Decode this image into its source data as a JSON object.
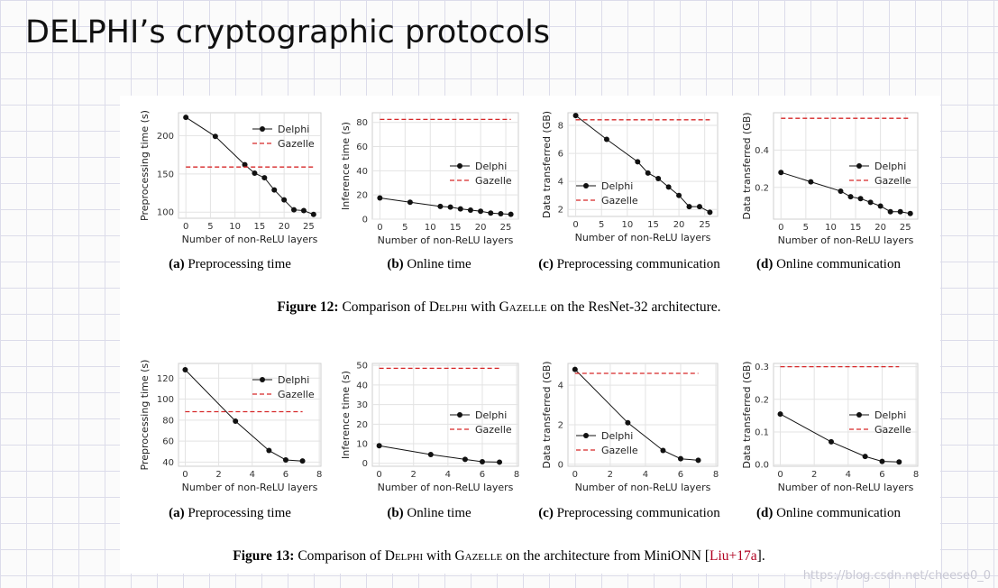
{
  "slide": {
    "title": "DELPHI’s cryptographic protocols",
    "watermark": "https://blog.csdn.net/cheese0_0"
  },
  "figures": [
    {
      "label": "Figure 12:",
      "caption_a": "Comparison of ",
      "sc1": "Delphi",
      "caption_b": " with ",
      "sc2": "Gazelle",
      "caption_c": " on the ResNet-32 architecture.",
      "cite": "",
      "caption_end": ""
    },
    {
      "label": "Figure 13:",
      "caption_a": "Comparison of ",
      "sc1": "Delphi",
      "caption_b": " with ",
      "sc2": "Gazelle",
      "caption_c": " on the architecture from MiniONN [",
      "cite": "Liu+17a",
      "caption_end": "]."
    }
  ],
  "subcaptions": [
    {
      "letter": "(a)",
      "text": " Preprocessing time"
    },
    {
      "letter": "(b)",
      "text": " Online time"
    },
    {
      "letter": "(c)",
      "text": " Preprocessing communication"
    },
    {
      "letter": "(d)",
      "text": " Online communication"
    },
    {
      "letter": "(a)",
      "text": " Preprocessing time"
    },
    {
      "letter": "(b)",
      "text": " Online time"
    },
    {
      "letter": "(c)",
      "text": " Preprocessing communication"
    },
    {
      "letter": "(d)",
      "text": " Online communication"
    }
  ],
  "colors": {
    "delphi": "#111111",
    "gazelle": "#d62728",
    "grid": "#e3e3e3",
    "axis": "#333333"
  },
  "chart_data": [
    {
      "type": "line",
      "title": "",
      "xlabel": "Number of non-ReLU layers",
      "ylabel": "Preprocessing time (s)",
      "xlim": [
        -1.5,
        27.5
      ],
      "ylim": [
        92,
        230
      ],
      "xticks": [
        0,
        5,
        10,
        15,
        20,
        25
      ],
      "yticks": [
        100,
        150,
        200
      ],
      "legend": "top-right",
      "series": [
        {
          "name": "Delphi",
          "style": "line-marker",
          "x": [
            0,
            6,
            12,
            14,
            16,
            18,
            20,
            22,
            24,
            26
          ],
          "y": [
            224,
            199,
            162,
            151,
            145,
            129,
            116,
            103,
            102,
            97
          ]
        },
        {
          "name": "Gazelle",
          "style": "dashed",
          "x": [
            0,
            26
          ],
          "y": [
            159,
            159
          ]
        }
      ]
    },
    {
      "type": "line",
      "title": "",
      "xlabel": "Number of non-ReLU layers",
      "ylabel": "Inference time (s)",
      "xlim": [
        -1.5,
        27.5
      ],
      "ylim": [
        0,
        88
      ],
      "xticks": [
        0,
        5,
        10,
        15,
        20,
        25
      ],
      "yticks": [
        0,
        20,
        40,
        60,
        80
      ],
      "legend": "center-right",
      "series": [
        {
          "name": "Delphi",
          "style": "line-marker",
          "x": [
            0,
            6,
            12,
            14,
            16,
            18,
            20,
            22,
            24,
            26
          ],
          "y": [
            17.5,
            14,
            10.5,
            10,
            8.5,
            7.5,
            6.5,
            5,
            4.5,
            4
          ]
        },
        {
          "name": "Gazelle",
          "style": "dashed",
          "x": [
            0,
            26
          ],
          "y": [
            82.5,
            82.5
          ]
        }
      ]
    },
    {
      "type": "line",
      "title": "",
      "xlabel": "Number of non-ReLU layers",
      "ylabel": "Data transferred (GB)",
      "xlim": [
        -1.5,
        27.5
      ],
      "ylim": [
        1.5,
        8.9
      ],
      "xticks": [
        0,
        5,
        10,
        15,
        20,
        25
      ],
      "yticks": [
        2,
        4,
        6,
        8
      ],
      "legend": "bottom-left",
      "series": [
        {
          "name": "Delphi",
          "style": "line-marker",
          "x": [
            0,
            6,
            12,
            14,
            16,
            18,
            20,
            22,
            24,
            26
          ],
          "y": [
            8.7,
            7.0,
            5.4,
            4.6,
            4.2,
            3.6,
            3.0,
            2.2,
            2.2,
            1.8
          ]
        },
        {
          "name": "Gazelle",
          "style": "dashed",
          "x": [
            0,
            26
          ],
          "y": [
            8.4,
            8.4
          ]
        }
      ]
    },
    {
      "type": "line",
      "title": "",
      "xlabel": "Number of non-ReLU layers",
      "ylabel": "Data transferred (GB)",
      "xlim": [
        -1.5,
        27.5
      ],
      "ylim": [
        0.03,
        0.6
      ],
      "xticks": [
        0,
        5,
        10,
        15,
        20,
        25
      ],
      "yticks": [
        0.2,
        0.4
      ],
      "legend": "center-right",
      "series": [
        {
          "name": "Delphi",
          "style": "line-marker",
          "x": [
            0,
            6,
            12,
            14,
            16,
            18,
            20,
            22,
            24,
            26
          ],
          "y": [
            0.28,
            0.23,
            0.18,
            0.15,
            0.14,
            0.12,
            0.1,
            0.07,
            0.07,
            0.06
          ]
        },
        {
          "name": "Gazelle",
          "style": "dashed",
          "x": [
            0,
            26
          ],
          "y": [
            0.57,
            0.57
          ]
        }
      ]
    },
    {
      "type": "line",
      "title": "",
      "xlabel": "Number of non-ReLU layers",
      "ylabel": "Preprocessing time (s)",
      "xlim": [
        -0.4,
        8.1
      ],
      "ylim": [
        36,
        134
      ],
      "xticks": [
        0,
        2,
        4,
        6,
        8
      ],
      "yticks": [
        40,
        60,
        80,
        100,
        120
      ],
      "legend": "top-right",
      "series": [
        {
          "name": "Delphi",
          "style": "line-marker",
          "x": [
            0,
            3,
            5,
            6,
            7
          ],
          "y": [
            128,
            79,
            51,
            42,
            41
          ]
        },
        {
          "name": "Gazelle",
          "style": "dashed",
          "x": [
            0,
            7
          ],
          "y": [
            88,
            88
          ]
        }
      ]
    },
    {
      "type": "line",
      "title": "",
      "xlabel": "Number of non-ReLU layers",
      "ylabel": "Inference time (s)",
      "xlim": [
        -0.4,
        8.1
      ],
      "ylim": [
        -1.5,
        51
      ],
      "xticks": [
        0,
        2,
        4,
        6,
        8
      ],
      "yticks": [
        0,
        10,
        20,
        30,
        40,
        50
      ],
      "legend": "center-right",
      "series": [
        {
          "name": "Delphi",
          "style": "line-marker",
          "x": [
            0,
            3,
            5,
            6,
            7
          ],
          "y": [
            9,
            4.5,
            2,
            0.8,
            0.6
          ]
        },
        {
          "name": "Gazelle",
          "style": "dashed",
          "x": [
            0,
            7
          ],
          "y": [
            48.5,
            48.5
          ]
        }
      ]
    },
    {
      "type": "line",
      "title": "",
      "xlabel": "Number of non-ReLU layers",
      "ylabel": "Data transferred (GB)",
      "xlim": [
        -0.4,
        8.1
      ],
      "ylim": [
        -0.1,
        5.1
      ],
      "xticks": [
        0,
        2,
        4,
        6,
        8
      ],
      "yticks": [
        0,
        2,
        4
      ],
      "legend": "bottom-left",
      "series": [
        {
          "name": "Delphi",
          "style": "line-marker",
          "x": [
            0,
            3,
            5,
            6,
            7
          ],
          "y": [
            4.8,
            2.1,
            0.7,
            0.28,
            0.2
          ]
        },
        {
          "name": "Gazelle",
          "style": "dashed",
          "x": [
            0,
            7
          ],
          "y": [
            4.6,
            4.6
          ]
        }
      ]
    },
    {
      "type": "line",
      "title": "",
      "xlabel": "Number of non-ReLU layers",
      "ylabel": "Data transferred (GB)",
      "xlim": [
        -0.4,
        8.1
      ],
      "ylim": [
        -0.005,
        0.31
      ],
      "xticks": [
        0,
        2,
        4,
        6,
        8
      ],
      "yticks": [
        0.0,
        0.1,
        0.2,
        0.3
      ],
      "legend": "center-right",
      "series": [
        {
          "name": "Delphi",
          "style": "line-marker",
          "x": [
            0,
            3,
            5,
            6,
            7
          ],
          "y": [
            0.155,
            0.07,
            0.025,
            0.01,
            0.008
          ]
        },
        {
          "name": "Gazelle",
          "style": "dashed",
          "x": [
            0,
            7
          ],
          "y": [
            0.3,
            0.3
          ]
        }
      ]
    }
  ]
}
